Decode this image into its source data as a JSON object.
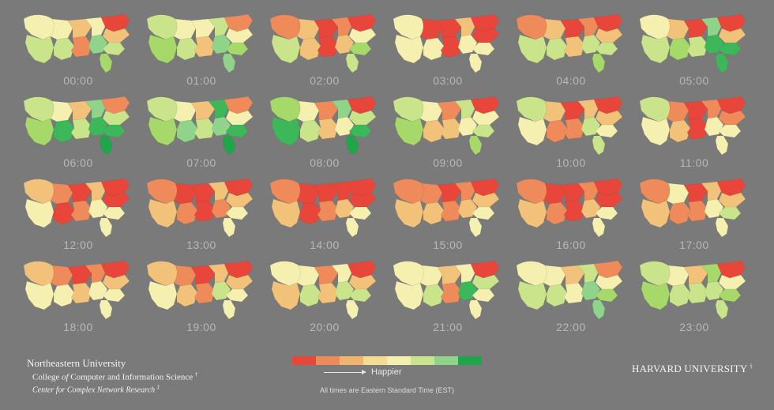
{
  "maps": [
    {
      "time": "00:00",
      "colors": [
        "#f5f0b0",
        "#c9e48a",
        "#f5f0b0",
        "#c9e48a",
        "#f3c27a",
        "#ef8a5a",
        "#f5f0b0",
        "#8fd48a",
        "#e8463a",
        "#f3c27a",
        "#c9e48a",
        "#a6d96a"
      ]
    },
    {
      "time": "01:00",
      "colors": [
        "#c9e48a",
        "#a6d96a",
        "#f5f0b0",
        "#c9e48a",
        "#f5f0b0",
        "#f3c27a",
        "#c9e48a",
        "#8fd48a",
        "#ef8a5a",
        "#f5f0b0",
        "#a6d96a",
        "#8fd48a"
      ]
    },
    {
      "time": "02:00",
      "colors": [
        "#ef8a5a",
        "#c9e48a",
        "#f3c27a",
        "#f3c27a",
        "#e8463a",
        "#e8463a",
        "#ef8a5a",
        "#f3c27a",
        "#e8463a",
        "#f5f0b0",
        "#a6d96a",
        "#c9e48a"
      ]
    },
    {
      "time": "03:00",
      "colors": [
        "#f5f0b0",
        "#f5f0b0",
        "#e8463a",
        "#f5f0b0",
        "#e8463a",
        "#e8463a",
        "#f3c27a",
        "#f5f0b0",
        "#e8463a",
        "#e8463a",
        "#f5f0b0",
        "#f5f0b0"
      ]
    },
    {
      "time": "04:00",
      "colors": [
        "#ef8a5a",
        "#c9e48a",
        "#f3c27a",
        "#c9e48a",
        "#e8463a",
        "#f3c27a",
        "#ef8a5a",
        "#c9e48a",
        "#e8463a",
        "#f3c27a",
        "#c9e48a",
        "#a6d96a"
      ]
    },
    {
      "time": "05:00",
      "colors": [
        "#f5f0b0",
        "#c9e48a",
        "#f3c27a",
        "#a6d96a",
        "#e8463a",
        "#c9e48a",
        "#8fd48a",
        "#3cb85a",
        "#e8463a",
        "#f3c27a",
        "#3cb85a",
        "#3cb85a"
      ]
    },
    {
      "time": "06:00",
      "colors": [
        "#c9e48a",
        "#a6d96a",
        "#f5f0b0",
        "#3cb85a",
        "#f3c27a",
        "#c9e48a",
        "#8fd48a",
        "#3cb85a",
        "#ef8a5a",
        "#c9e48a",
        "#3cb85a",
        "#1fa64a"
      ]
    },
    {
      "time": "07:00",
      "colors": [
        "#c9e48a",
        "#a6d96a",
        "#f5f0b0",
        "#8fd48a",
        "#f3c27a",
        "#c9e48a",
        "#3cb85a",
        "#8fd48a",
        "#ef8a5a",
        "#f5f0b0",
        "#3cb85a",
        "#1fa64a"
      ]
    },
    {
      "time": "08:00",
      "colors": [
        "#a6d96a",
        "#3cb85a",
        "#f5f0b0",
        "#c9e48a",
        "#ef8a5a",
        "#f3c27a",
        "#8fd48a",
        "#f5f0b0",
        "#e8463a",
        "#c9e48a",
        "#3cb85a",
        "#1fa64a"
      ]
    },
    {
      "time": "09:00",
      "colors": [
        "#c9e48a",
        "#a6d96a",
        "#f5f0b0",
        "#f3c27a",
        "#ef8a5a",
        "#f3c27a",
        "#c9e48a",
        "#f5f0b0",
        "#e8463a",
        "#f5f0b0",
        "#c9e48a",
        "#a6d96a"
      ]
    },
    {
      "time": "10:00",
      "colors": [
        "#c9e48a",
        "#f5f0b0",
        "#f3c27a",
        "#ef8a5a",
        "#e8463a",
        "#ef8a5a",
        "#f3c27a",
        "#c9e48a",
        "#e8463a",
        "#f3c27a",
        "#f5f0b0",
        "#c9e48a"
      ]
    },
    {
      "time": "11:00",
      "colors": [
        "#c9e48a",
        "#f5f0b0",
        "#ef8a5a",
        "#f3c27a",
        "#e8463a",
        "#e8463a",
        "#ef8a5a",
        "#f5f0b0",
        "#e8463a",
        "#ef8a5a",
        "#f5f0b0",
        "#f5f0b0"
      ]
    },
    {
      "time": "12:00",
      "colors": [
        "#f3c27a",
        "#f5f0b0",
        "#ef8a5a",
        "#e8463a",
        "#e8463a",
        "#ef8a5a",
        "#f3c27a",
        "#f5f0b0",
        "#e8463a",
        "#e8463a",
        "#f5f0b0",
        "#f5f0b0"
      ]
    },
    {
      "time": "13:00",
      "colors": [
        "#ef8a5a",
        "#f3c27a",
        "#e8463a",
        "#ef8a5a",
        "#e8463a",
        "#e8463a",
        "#f3c27a",
        "#ef8a5a",
        "#e8463a",
        "#f3c27a",
        "#f5f0b0",
        "#f5f0b0"
      ]
    },
    {
      "time": "14:00",
      "colors": [
        "#ef8a5a",
        "#f3c27a",
        "#e8463a",
        "#e8463a",
        "#e8463a",
        "#ef8a5a",
        "#e8463a",
        "#f3c27a",
        "#e8463a",
        "#e8463a",
        "#f5f0b0",
        "#f5f0b0"
      ]
    },
    {
      "time": "15:00",
      "colors": [
        "#ef8a5a",
        "#f3c27a",
        "#ef8a5a",
        "#f3c27a",
        "#e8463a",
        "#ef8a5a",
        "#ef8a5a",
        "#f3c27a",
        "#e8463a",
        "#f3c27a",
        "#f5f0b0",
        "#f5f0b0"
      ]
    },
    {
      "time": "16:00",
      "colors": [
        "#ef8a5a",
        "#f3c27a",
        "#e8463a",
        "#ef8a5a",
        "#e8463a",
        "#e8463a",
        "#ef8a5a",
        "#f3c27a",
        "#e8463a",
        "#e8463a",
        "#f5f0b0",
        "#f5f0b0"
      ]
    },
    {
      "time": "17:00",
      "colors": [
        "#ef8a5a",
        "#f3c27a",
        "#f5f0b0",
        "#ef8a5a",
        "#e8463a",
        "#ef8a5a",
        "#f3c27a",
        "#f5f0b0",
        "#e8463a",
        "#f3c27a",
        "#c9e48a",
        "#f5f0b0"
      ]
    },
    {
      "time": "18:00",
      "colors": [
        "#f3c27a",
        "#f5f0b0",
        "#ef8a5a",
        "#f5f0b0",
        "#e8463a",
        "#f3c27a",
        "#ef8a5a",
        "#f5f0b0",
        "#e8463a",
        "#f3c27a",
        "#f5f0b0",
        "#f5f0b0"
      ]
    },
    {
      "time": "19:00",
      "colors": [
        "#f3c27a",
        "#f5f0b0",
        "#ef8a5a",
        "#f3c27a",
        "#e8463a",
        "#ef8a5a",
        "#f3c27a",
        "#c9e48a",
        "#e8463a",
        "#f3c27a",
        "#f5f0b0",
        "#f5f0b0"
      ]
    },
    {
      "time": "20:00",
      "colors": [
        "#f5f0b0",
        "#f3c27a",
        "#f5f0b0",
        "#c9e48a",
        "#ef8a5a",
        "#f3c27a",
        "#f5f0b0",
        "#c9e48a",
        "#e8463a",
        "#f3c27a",
        "#c9e48a",
        "#f5f0b0"
      ]
    },
    {
      "time": "21:00",
      "colors": [
        "#f5f0b0",
        "#f5f0b0",
        "#f5f0b0",
        "#c9e48a",
        "#f3c27a",
        "#ef8a5a",
        "#f5f0b0",
        "#3cb85a",
        "#e8463a",
        "#c9e48a",
        "#f5f0b0",
        "#f5f0b0"
      ]
    },
    {
      "time": "22:00",
      "colors": [
        "#f5f0b0",
        "#c9e48a",
        "#f5f0b0",
        "#c9e48a",
        "#f3c27a",
        "#f5f0b0",
        "#c9e48a",
        "#8fd48a",
        "#ef8a5a",
        "#f5f0b0",
        "#a6d96a",
        "#8fd48a"
      ]
    },
    {
      "time": "23:00",
      "colors": [
        "#c9e48a",
        "#a6d96a",
        "#f5f0b0",
        "#c9e48a",
        "#f3c27a",
        "#c9e48a",
        "#a6d96a",
        "#c9e48a",
        "#e8463a",
        "#f5f0b0",
        "#a6d96a",
        "#c9e48a"
      ]
    }
  ],
  "legend": {
    "colors": [
      "#e8463a",
      "#ef8a5a",
      "#f3b56e",
      "#f5dc92",
      "#f5f0b0",
      "#c9e48a",
      "#8fd48a",
      "#1fa64a"
    ],
    "label": "Happier"
  },
  "footnote": "All times are Eastern Standard Time (EST)",
  "credits": {
    "university": "Northeastern University",
    "college_prefix": "College",
    "college_of": "of",
    "college_suffix": "Computer and Information Science",
    "college_mark": "†",
    "center": "Center for Complex Network Research",
    "center_mark": "‡",
    "harvard": "HARVARD UNIVERSITY",
    "harvard_mark": "§"
  }
}
